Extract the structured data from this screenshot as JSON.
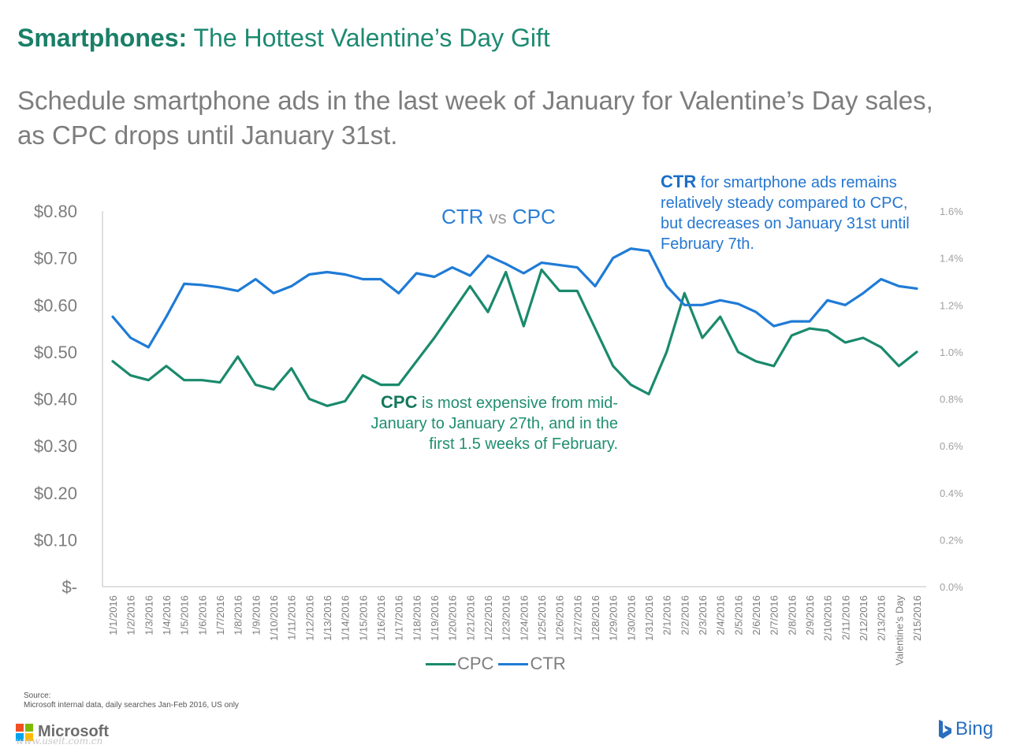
{
  "header": {
    "title_bold": "Smartphones:",
    "title_rest": "The Hottest Valentine’s Day Gift",
    "subtitle_line1": "Schedule smartphone ads in the last week of January for Valentine’s Day sales,",
    "subtitle_line2": "as CPC drops until January 31st."
  },
  "chart_inner_title": {
    "ctr": "CTR",
    "vs": "vs",
    "cpc": "CPC"
  },
  "annotations": {
    "ctr_bold": "CTR",
    "ctr_text": "for smartphone ads remains relatively steady compared to CPC, but decreases on January 31st until February 7th.",
    "cpc_bold": "CPC",
    "cpc_text": "is most expensive from mid-January to January 27th, and in the first 1.5 weeks of February."
  },
  "legend": {
    "cpc": "CPC",
    "ctr": "CTR"
  },
  "source": {
    "label": "Source:",
    "text": "Microsoft internal data, daily searches Jan-Feb 2016, US only"
  },
  "branding": {
    "microsoft": "Microsoft",
    "bing": "Bing",
    "watermark": "www.useit.com.cn"
  },
  "colors": {
    "cpc": "#1a8a6c",
    "ctr": "#1f7bd6",
    "title": "#1e8a72",
    "ms_red": "#f25022",
    "ms_green": "#7fba00",
    "ms_blue": "#00a4ef",
    "ms_yellow": "#ffb900"
  },
  "chart_data": {
    "type": "line",
    "title": "CTR vs CPC",
    "categories": [
      "1/1/2016",
      "1/2/2016",
      "1/3/2016",
      "1/4/2016",
      "1/5/2016",
      "1/6/2016",
      "1/7/2016",
      "1/8/2016",
      "1/9/2016",
      "1/10/2016",
      "1/11/2016",
      "1/12/2016",
      "1/13/2016",
      "1/14/2016",
      "1/15/2016",
      "1/16/2016",
      "1/17/2016",
      "1/18/2016",
      "1/19/2016",
      "1/20/2016",
      "1/21/2016",
      "1/22/2016",
      "1/23/2016",
      "1/24/2016",
      "1/25/2016",
      "1/26/2016",
      "1/27/2016",
      "1/28/2016",
      "1/29/2016",
      "1/30/2016",
      "1/31/2016",
      "2/1/2016",
      "2/2/2016",
      "2/3/2016",
      "2/4/2016",
      "2/5/2016",
      "2/6/2016",
      "2/7/2016",
      "2/8/2016",
      "2/9/2016",
      "2/10/2016",
      "2/11/2016",
      "2/12/2016",
      "2/13/2016",
      "Valentine's Day",
      "2/15/2016"
    ],
    "series": [
      {
        "name": "CPC",
        "axis": "left",
        "values": [
          0.48,
          0.45,
          0.44,
          0.47,
          0.44,
          0.44,
          0.435,
          0.49,
          0.43,
          0.42,
          0.465,
          0.4,
          0.385,
          0.395,
          0.45,
          0.43,
          0.43,
          0.48,
          0.53,
          0.585,
          0.64,
          0.585,
          0.67,
          0.555,
          0.675,
          0.63,
          0.63,
          0.55,
          0.47,
          0.43,
          0.41,
          0.5,
          0.625,
          0.53,
          0.575,
          0.5,
          0.48,
          0.47,
          0.535,
          0.55,
          0.545,
          0.52,
          0.53,
          0.51,
          0.47,
          0.5
        ]
      },
      {
        "name": "CTR",
        "axis": "right",
        "values": [
          1.15,
          1.06,
          1.02,
          1.15,
          1.29,
          1.285,
          1.275,
          1.26,
          1.31,
          1.25,
          1.28,
          1.33,
          1.34,
          1.33,
          1.31,
          1.31,
          1.25,
          1.335,
          1.32,
          1.36,
          1.325,
          1.41,
          1.375,
          1.335,
          1.38,
          1.37,
          1.36,
          1.28,
          1.4,
          1.44,
          1.43,
          1.28,
          1.2,
          1.2,
          1.22,
          1.205,
          1.17,
          1.11,
          1.13,
          1.13,
          1.22,
          1.2,
          1.25,
          1.31,
          1.28,
          1.27
        ]
      }
    ],
    "y_left": {
      "ylim": [
        0,
        0.8
      ],
      "ticks": [
        "$-",
        "$0.10",
        "$0.20",
        "$0.30",
        "$0.40",
        "$0.50",
        "$0.60",
        "$0.70",
        "$0.80"
      ]
    },
    "y_right": {
      "ylim": [
        0,
        1.6
      ],
      "ticks": [
        "0.0%",
        "0.2%",
        "0.4%",
        "0.6%",
        "0.8%",
        "1.0%",
        "1.2%",
        "1.4%",
        "1.6%"
      ]
    },
    "grid": false,
    "legend_position": "bottom"
  }
}
